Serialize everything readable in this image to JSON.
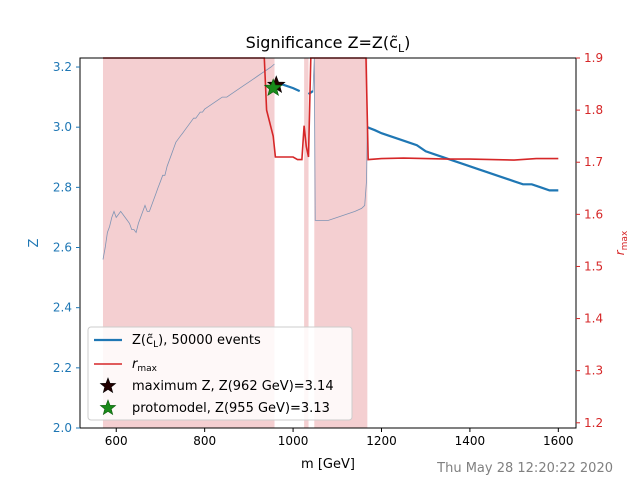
{
  "chart_data": {
    "type": "line",
    "title": "Significance Z=Z(",
    "title_sym": "c̃",
    "title_sub": "L",
    "title_end": ")",
    "xlabel": "m [GeV]",
    "ylabel_left": "Z",
    "ylabel_right_main": "r",
    "ylabel_right_sub": "max",
    "xlim": [
      518,
      1640
    ],
    "ylim_left": [
      2.0,
      3.23
    ],
    "ylim_right": [
      1.19,
      1.9
    ],
    "xticks": [
      600,
      800,
      1000,
      1200,
      1400,
      1600
    ],
    "xtick_labels": [
      "600",
      "800",
      "1000",
      "1200",
      "1400",
      "1600"
    ],
    "yticks_left": [
      2.0,
      2.2,
      2.4,
      2.6,
      2.8,
      3.0,
      3.2
    ],
    "ytick_labels_left": [
      "2.0",
      "2.2",
      "2.4",
      "2.6",
      "2.8",
      "3.0",
      "3.2"
    ],
    "yticks_right": [
      1.2,
      1.3,
      1.4,
      1.5,
      1.6,
      1.7,
      1.8,
      1.9
    ],
    "ytick_labels_right": [
      "1.2",
      "1.3",
      "1.4",
      "1.5",
      "1.6",
      "1.7",
      "1.8",
      "1.9"
    ],
    "colors": {
      "z_series": "#1f77b4",
      "z_thin": "#7f94b4",
      "rmax": "#d62728",
      "shade": "#f4cfd1",
      "star_max": "#220000",
      "star_proto": "#1a8a1a",
      "timestamp": "#808080"
    },
    "shaded_regions": [
      [
        570,
        958
      ],
      [
        1025,
        1035
      ],
      [
        1048,
        1168
      ]
    ],
    "z_thin_series": [
      [
        570,
        2.56
      ],
      [
        575,
        2.6
      ],
      [
        580,
        2.65
      ],
      [
        585,
        2.67
      ],
      [
        590,
        2.7
      ],
      [
        595,
        2.72
      ],
      [
        600,
        2.7
      ],
      [
        605,
        2.71
      ],
      [
        610,
        2.72
      ],
      [
        615,
        2.71
      ],
      [
        620,
        2.7
      ],
      [
        625,
        2.69
      ],
      [
        630,
        2.68
      ],
      [
        635,
        2.66
      ],
      [
        640,
        2.66
      ],
      [
        645,
        2.65
      ],
      [
        650,
        2.68
      ],
      [
        655,
        2.7
      ],
      [
        660,
        2.72
      ],
      [
        665,
        2.74
      ],
      [
        670,
        2.72
      ],
      [
        675,
        2.72
      ],
      [
        680,
        2.74
      ],
      [
        685,
        2.76
      ],
      [
        690,
        2.78
      ],
      [
        695,
        2.8
      ],
      [
        700,
        2.82
      ],
      [
        705,
        2.84
      ],
      [
        710,
        2.84
      ],
      [
        715,
        2.87
      ],
      [
        720,
        2.89
      ],
      [
        725,
        2.91
      ],
      [
        730,
        2.93
      ],
      [
        735,
        2.95
      ],
      [
        740,
        2.96
      ],
      [
        745,
        2.97
      ],
      [
        750,
        2.98
      ],
      [
        755,
        2.99
      ],
      [
        760,
        3.0
      ],
      [
        765,
        3.01
      ],
      [
        770,
        3.02
      ],
      [
        775,
        3.03
      ],
      [
        780,
        3.03
      ],
      [
        785,
        3.04
      ],
      [
        790,
        3.05
      ],
      [
        795,
        3.05
      ],
      [
        800,
        3.06
      ],
      [
        810,
        3.07
      ],
      [
        820,
        3.08
      ],
      [
        830,
        3.09
      ],
      [
        840,
        3.1
      ],
      [
        850,
        3.1
      ],
      [
        860,
        3.11
      ],
      [
        870,
        3.12
      ],
      [
        880,
        3.13
      ],
      [
        890,
        3.14
      ],
      [
        900,
        3.15
      ],
      [
        910,
        3.16
      ],
      [
        920,
        3.17
      ],
      [
        930,
        3.18
      ],
      [
        940,
        3.19
      ],
      [
        950,
        3.2
      ],
      [
        958,
        3.21
      ]
    ],
    "z_thick_segments": [
      [
        [
          958,
          3.15
        ],
        [
          980,
          3.14
        ],
        [
          1000,
          3.13
        ],
        [
          1015,
          3.12
        ]
      ],
      [
        [
          1035,
          3.11
        ],
        [
          1045,
          3.12
        ]
      ],
      [
        [
          1168,
          3.0
        ],
        [
          1185,
          2.99
        ],
        [
          1200,
          2.98
        ],
        [
          1220,
          2.97
        ],
        [
          1240,
          2.96
        ],
        [
          1260,
          2.95
        ],
        [
          1280,
          2.94
        ],
        [
          1300,
          2.92
        ],
        [
          1320,
          2.91
        ],
        [
          1340,
          2.9
        ],
        [
          1360,
          2.89
        ],
        [
          1380,
          2.88
        ],
        [
          1400,
          2.87
        ],
        [
          1420,
          2.86
        ],
        [
          1440,
          2.85
        ],
        [
          1460,
          2.84
        ],
        [
          1480,
          2.83
        ],
        [
          1500,
          2.82
        ],
        [
          1520,
          2.81
        ],
        [
          1540,
          2.81
        ],
        [
          1560,
          2.8
        ],
        [
          1580,
          2.79
        ],
        [
          1600,
          2.79
        ]
      ]
    ],
    "z_thin_tail": [
      [
        1045,
        3.12
      ],
      [
        1048,
        3.23
      ],
      [
        1050,
        2.69
      ],
      [
        1060,
        2.69
      ],
      [
        1080,
        2.69
      ],
      [
        1100,
        2.7
      ],
      [
        1120,
        2.71
      ],
      [
        1140,
        2.72
      ],
      [
        1155,
        2.73
      ],
      [
        1162,
        2.74
      ],
      [
        1166,
        2.82
      ],
      [
        1168,
        3.0
      ]
    ],
    "rmax_series": [
      [
        570,
        1.9
      ],
      [
        935,
        1.9
      ],
      [
        940,
        1.8
      ],
      [
        955,
        1.75
      ],
      [
        960,
        1.71
      ],
      [
        1000,
        1.71
      ],
      [
        1010,
        1.705
      ],
      [
        1020,
        1.705
      ],
      [
        1025,
        1.77
      ],
      [
        1030,
        1.73
      ],
      [
        1035,
        1.71
      ],
      [
        1040,
        1.9
      ],
      [
        1048,
        1.9
      ],
      [
        1165,
        1.9
      ],
      [
        1170,
        1.705
      ],
      [
        1200,
        1.707
      ],
      [
        1250,
        1.708
      ],
      [
        1300,
        1.707
      ],
      [
        1350,
        1.706
      ],
      [
        1400,
        1.706
      ],
      [
        1450,
        1.705
      ],
      [
        1500,
        1.704
      ],
      [
        1550,
        1.707
      ],
      [
        1600,
        1.707
      ]
    ],
    "markers": [
      {
        "name": "maximum Z",
        "x": 962,
        "z": 3.14,
        "color_key": "star_max"
      },
      {
        "name": "protomodel",
        "x": 955,
        "z": 3.13,
        "color_key": "star_proto"
      }
    ],
    "legend": {
      "placement": "lower-left",
      "entries": [
        {
          "kind": "line-blue",
          "text_main": "Z(",
          "text_sym": "c̃",
          "text_sub": "L",
          "text_end": "), 50000 events"
        },
        {
          "kind": "line-red",
          "text_main": "r",
          "text_sub": "max"
        },
        {
          "kind": "star-max",
          "text_main": "maximum Z, Z(962 GeV)=3.14"
        },
        {
          "kind": "star-proto",
          "text_main": "protomodel, Z(955 GeV)=3.13"
        }
      ]
    },
    "timestamp": "Thu May 28 12:20:22 2020"
  }
}
